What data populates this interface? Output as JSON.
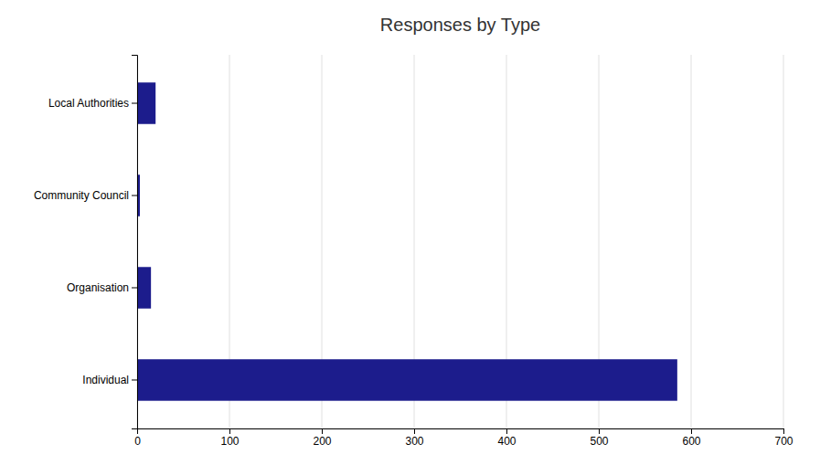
{
  "chart_data": {
    "type": "bar",
    "orientation": "horizontal",
    "title": "Responses by Type",
    "categories": [
      "Individual",
      "Organisation",
      "Community Council",
      "Local Authorities"
    ],
    "values": [
      585,
      15,
      3,
      20
    ],
    "color": "#1c1c8c",
    "xlim": [
      0,
      700
    ],
    "xticks": [
      0,
      100,
      200,
      300,
      400,
      500,
      600,
      700
    ],
    "grid": true
  }
}
